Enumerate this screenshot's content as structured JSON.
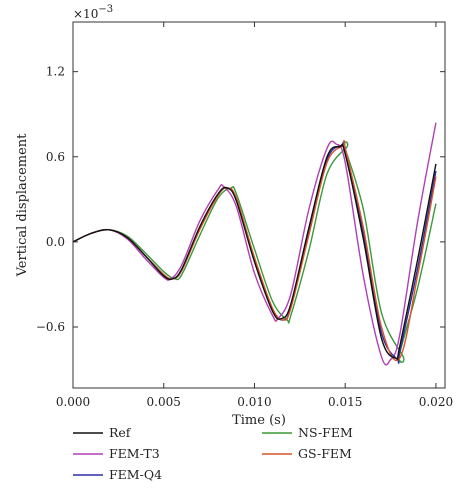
{
  "chart_data": {
    "type": "line",
    "xlabel": "Time (s)",
    "ylabel": "Vertical displacement",
    "y_multiplier_base": "×10",
    "y_multiplier_exponent": "−3",
    "xlim": [
      0,
      0.0205
    ],
    "ylim": [
      -0.00103,
      0.00155
    ],
    "x_ticks": [
      0.0,
      0.005,
      0.01,
      0.015,
      0.02
    ],
    "x_tick_labels": [
      "0.000",
      "0.005",
      "0.010",
      "0.015",
      "0.020"
    ],
    "y_ticks": [
      -0.0006,
      0.0,
      0.0006,
      0.0012
    ],
    "y_tick_labels": [
      "−0.6",
      "0.0",
      "0.6",
      "1.2"
    ],
    "grid": false,
    "legend_position": "bottom",
    "series": [
      {
        "name": "Ref",
        "color": "#111111",
        "x": [
          0,
          0.001,
          0.002,
          0.003,
          0.004,
          0.005,
          0.0055,
          0.006,
          0.007,
          0.008,
          0.0085,
          0.009,
          0.01,
          0.011,
          0.0115,
          0.012,
          0.013,
          0.014,
          0.0147,
          0.015,
          0.016,
          0.017,
          0.0178,
          0.018,
          0.019,
          0.02
        ],
        "y": [
          0,
          6e-05,
          8.5e-05,
          3e-05,
          -0.0001,
          -0.00024,
          -0.00026,
          -0.00019,
          0.00011,
          0.00034,
          0.00038,
          0.00029,
          -0.00014,
          -0.00049,
          -0.00054,
          -0.00044,
          0.0001,
          0.0006,
          0.00067,
          0.00062,
          2e-05,
          -0.00068,
          -0.00082,
          -0.00074,
          -0.00012,
          0.00055
        ]
      },
      {
        "name": "FEM-T3",
        "color": "#b03fb5",
        "x": [
          0,
          0.001,
          0.002,
          0.003,
          0.004,
          0.005,
          0.0054,
          0.006,
          0.007,
          0.008,
          0.0083,
          0.009,
          0.01,
          0.011,
          0.0113,
          0.012,
          0.013,
          0.014,
          0.0145,
          0.015,
          0.016,
          0.017,
          0.0175,
          0.018,
          0.019,
          0.02
        ],
        "y": [
          0,
          6e-05,
          8.5e-05,
          2e-05,
          -0.00012,
          -0.00025,
          -0.00026,
          -0.00016,
          0.00015,
          0.00037,
          0.00039,
          0.00025,
          -0.00022,
          -0.00052,
          -0.00054,
          -0.00037,
          0.00023,
          0.00066,
          0.00069,
          0.00056,
          -0.00024,
          -0.00081,
          -0.00083,
          -0.00066,
          0.00015,
          0.00084
        ]
      },
      {
        "name": "FEM-Q4",
        "color": "#2c2fa6",
        "x": [
          0,
          0.001,
          0.002,
          0.003,
          0.004,
          0.005,
          0.0055,
          0.006,
          0.007,
          0.008,
          0.0085,
          0.009,
          0.01,
          0.011,
          0.0116,
          0.012,
          0.013,
          0.014,
          0.0148,
          0.015,
          0.016,
          0.017,
          0.0179,
          0.018,
          0.019,
          0.02
        ],
        "y": [
          0,
          6e-05,
          8.5e-05,
          3e-05,
          -0.0001,
          -0.00023,
          -0.00026,
          -0.0002,
          0.0001,
          0.00033,
          0.00038,
          0.0003,
          -0.00012,
          -0.00048,
          -0.00055,
          -0.00046,
          7e-05,
          0.00058,
          0.00068,
          0.00064,
          6e-05,
          -0.00064,
          -0.00083,
          -0.00078,
          -0.00018,
          0.0005
        ]
      },
      {
        "name": "NS-FEM",
        "color": "#3a9a3a",
        "x": [
          0,
          0.001,
          0.002,
          0.003,
          0.004,
          0.005,
          0.0056,
          0.006,
          0.007,
          0.008,
          0.0087,
          0.009,
          0.01,
          0.011,
          0.0118,
          0.012,
          0.013,
          0.014,
          0.0151,
          0.015,
          0.016,
          0.017,
          0.0182,
          0.018,
          0.019,
          0.02
        ],
        "y": [
          0,
          6e-05,
          8.5e-05,
          4e-05,
          -8e-05,
          -0.00021,
          -0.00026,
          -0.00023,
          5e-05,
          0.00031,
          0.00038,
          0.00034,
          -5e-05,
          -0.00042,
          -0.00055,
          -0.00052,
          -6e-05,
          0.00048,
          0.00067,
          0.00066,
          0.00023,
          -0.0005,
          -0.00081,
          -0.00079,
          -0.00032,
          0.00027
        ]
      },
      {
        "name": "GS-FEM",
        "color": "#d9542b",
        "x": [
          0,
          0.001,
          0.002,
          0.003,
          0.004,
          0.005,
          0.0055,
          0.006,
          0.007,
          0.008,
          0.0085,
          0.009,
          0.01,
          0.011,
          0.0116,
          0.012,
          0.013,
          0.014,
          0.0149,
          0.015,
          0.016,
          0.017,
          0.018,
          0.019,
          0.02
        ],
        "y": [
          0,
          6e-05,
          8.5e-05,
          3e-05,
          -0.0001,
          -0.00023,
          -0.00026,
          -0.0002,
          9e-05,
          0.00033,
          0.00038,
          0.00031,
          -0.00011,
          -0.00047,
          -0.00055,
          -0.00047,
          5e-05,
          0.00056,
          0.00068,
          0.00066,
          0.0001,
          -0.0006,
          -0.00082,
          -0.00023,
          0.00046
        ]
      }
    ]
  }
}
